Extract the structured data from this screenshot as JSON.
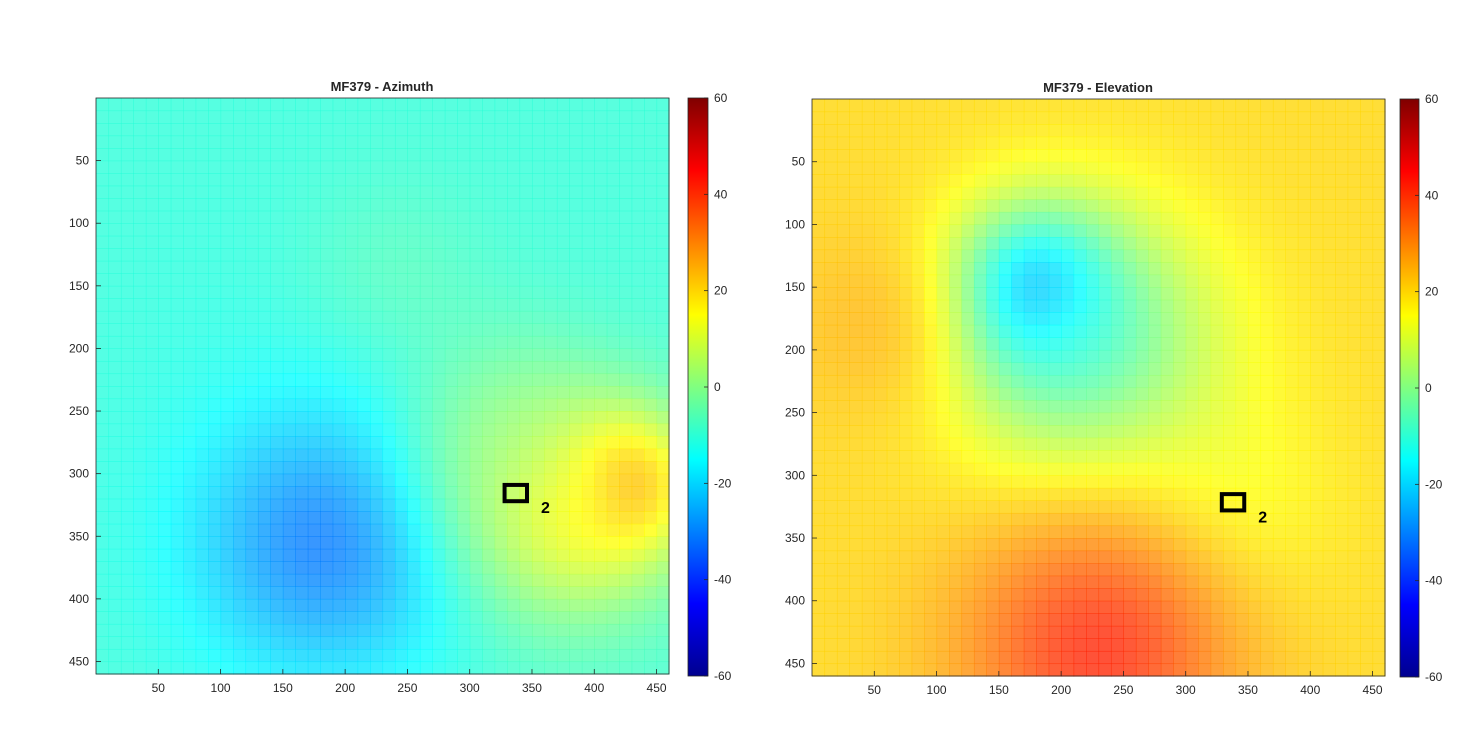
{
  "colors": {
    "jet": [
      "#00008f",
      "#0000ff",
      "#0080ff",
      "#00ffff",
      "#80ff80",
      "#ffff00",
      "#ff8000",
      "#ff0000",
      "#800000"
    ],
    "axis": "#262626",
    "roi": "#000000"
  },
  "chart_data": [
    {
      "type": "heatmap",
      "title": "MF379 - Azimuth",
      "xlabel": "",
      "ylabel": "",
      "xlim": [
        0,
        460
      ],
      "ylim": [
        460,
        0
      ],
      "x_ticks": [
        50,
        100,
        150,
        200,
        250,
        300,
        350,
        400,
        450
      ],
      "y_ticks": [
        50,
        100,
        150,
        200,
        250,
        300,
        350,
        400,
        450
      ],
      "colorbar": {
        "min": -60,
        "max": 60,
        "ticks": [
          60,
          40,
          20,
          0,
          -20,
          -40,
          -60
        ],
        "colormap": "jet"
      },
      "grid": false,
      "base_value": -10,
      "blobs": [
        {
          "x": 175,
          "y": 210,
          "r": 190,
          "value": -13,
          "strength": 0.5
        },
        {
          "x": 240,
          "y": 140,
          "r": 80,
          "value": 0,
          "strength": 0.35
        },
        {
          "x": 185,
          "y": 355,
          "r": 105,
          "value": -35,
          "strength": 0.85
        },
        {
          "x": 420,
          "y": 310,
          "r": 55,
          "value": 35,
          "strength": 0.95
        },
        {
          "x": 380,
          "y": 330,
          "r": 90,
          "value": 18,
          "strength": 0.8
        },
        {
          "x": 330,
          "y": 270,
          "r": 85,
          "value": 5,
          "strength": 0.55
        }
      ],
      "roi": {
        "label": "2",
        "x": [
          328,
          346
        ],
        "y": [
          309,
          322
        ]
      }
    },
    {
      "type": "heatmap",
      "title": "MF379 - Elevation",
      "xlabel": "",
      "ylabel": "",
      "xlim": [
        0,
        460
      ],
      "ylim": [
        460,
        0
      ],
      "x_ticks": [
        50,
        100,
        150,
        200,
        250,
        300,
        350,
        400,
        450
      ],
      "y_ticks": [
        50,
        100,
        150,
        200,
        250,
        300,
        350,
        400,
        450
      ],
      "colorbar": {
        "min": -60,
        "max": 60,
        "ticks": [
          60,
          40,
          20,
          0,
          -20,
          -40,
          -60
        ],
        "colormap": "jet"
      },
      "grid": false,
      "base_value": 20,
      "blobs": [
        {
          "x": 180,
          "y": 160,
          "r": 65,
          "value": -40,
          "strength": 0.95
        },
        {
          "x": 220,
          "y": 200,
          "r": 110,
          "value": -12,
          "strength": 0.75
        },
        {
          "x": 330,
          "y": 330,
          "r": 90,
          "value": 6,
          "strength": 0.45
        },
        {
          "x": 230,
          "y": 440,
          "r": 110,
          "value": 45,
          "strength": 0.85
        },
        {
          "x": 60,
          "y": 180,
          "r": 80,
          "value": 30,
          "strength": 0.5
        }
      ],
      "roi": {
        "label": "2",
        "x": [
          329,
          347
        ],
        "y": [
          315,
          328
        ]
      }
    }
  ]
}
